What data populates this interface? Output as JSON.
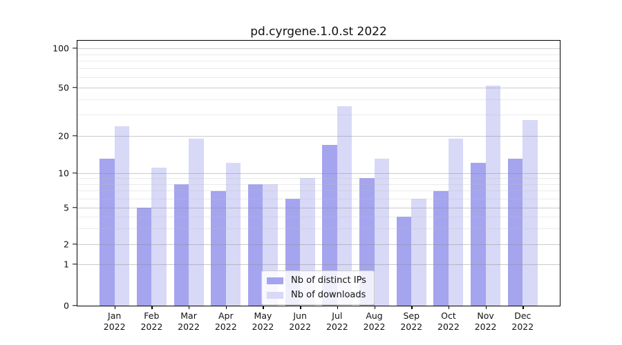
{
  "title": "pd.cyrgene.1.0.st 2022",
  "colors": {
    "bar_distinct_ips": "#a4a4ef",
    "bar_downloads": "#d8d8f7",
    "axis": "#000000",
    "grid_major": "#c6c6c6",
    "grid_minor": "#e9e9e9",
    "legend_border": "#cccccc"
  },
  "legend": {
    "entries": [
      {
        "label": "Nb of distinct IPs",
        "series_key": "bar_distinct_ips"
      },
      {
        "label": "Nb of downloads",
        "series_key": "bar_downloads"
      }
    ],
    "position": "lower center"
  },
  "chart_data": {
    "type": "bar",
    "title": "pd.cyrgene.1.0.st 2022",
    "categories": [
      "Jan",
      "Feb",
      "Mar",
      "Apr",
      "May",
      "Jun",
      "Jul",
      "Aug",
      "Sep",
      "Oct",
      "Nov",
      "Dec"
    ],
    "category_year": "2022",
    "series": [
      {
        "name": "Nb of distinct IPs",
        "color_key": "bar_distinct_ips",
        "values": [
          13,
          5,
          8,
          7,
          8,
          6,
          17,
          9,
          4,
          7,
          12,
          13
        ]
      },
      {
        "name": "Nb of downloads",
        "color_key": "bar_downloads",
        "values": [
          24,
          11,
          19,
          12,
          8,
          9,
          35,
          13,
          6,
          19,
          52,
          27
        ]
      }
    ],
    "yscale": "log-like (0,1 then logarithmic)",
    "yticks": [
      0,
      1,
      2,
      5,
      10,
      20,
      50,
      100
    ],
    "yticks_minor": [
      3,
      4,
      6,
      7,
      8,
      9,
      30,
      40,
      60,
      70,
      80,
      90
    ],
    "ylim": [
      0,
      110
    ],
    "grid": "horizontal major+minor, drawn over bars",
    "legend_position": "lower center"
  }
}
